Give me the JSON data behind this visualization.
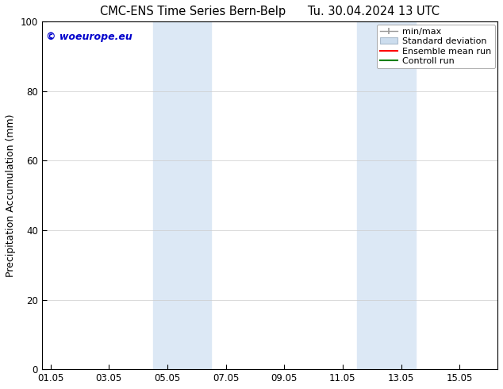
{
  "title_left": "CMC-ENS Time Series Bern-Belp",
  "title_right": "Tu. 30.04.2024 13 UTC",
  "ylabel": "Precipitation Accumulation (mm)",
  "ylim": [
    0,
    100
  ],
  "yticks": [
    0,
    20,
    40,
    60,
    80,
    100
  ],
  "bg_color": "#ffffff",
  "plot_bg_color": "#ffffff",
  "watermark": "© woeurope.eu",
  "watermark_color": "#0000cc",
  "legend_items": [
    {
      "label": "min/max",
      "color": "#aaaaaa",
      "style": "line_ticks"
    },
    {
      "label": "Standard deviation",
      "color": "#ccd9e8",
      "style": "fill"
    },
    {
      "label": "Ensemble mean run",
      "color": "#ff0000",
      "style": "line"
    },
    {
      "label": "Controll run",
      "color": "#008000",
      "style": "line"
    }
  ],
  "shaded_regions": [
    {
      "xstart": 3.5,
      "xend": 5.5,
      "color": "#dce8f5"
    },
    {
      "xstart": 10.5,
      "xend": 12.5,
      "color": "#dce8f5"
    }
  ],
  "xaxis_dates": [
    "01.05",
    "03.05",
    "05.05",
    "07.05",
    "09.05",
    "11.05",
    "13.05",
    "15.05"
  ],
  "xaxis_values": [
    0,
    2,
    4,
    6,
    8,
    10,
    12,
    14
  ],
  "xlim": [
    -0.3,
    15.3
  ],
  "title_fontsize": 10.5,
  "tick_fontsize": 8.5,
  "legend_fontsize": 8,
  "ylabel_fontsize": 9,
  "watermark_fontsize": 9
}
